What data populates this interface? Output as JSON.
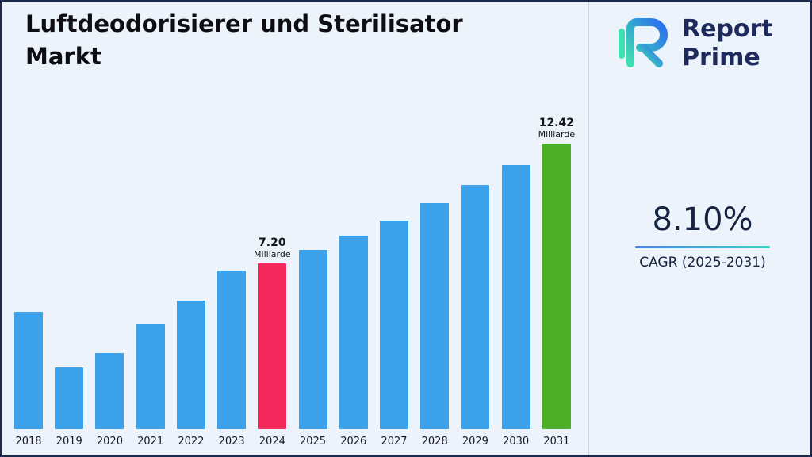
{
  "title_lines": [
    "Luftdeodorisierer und Sterilisator",
    "Markt"
  ],
  "brand": {
    "line1": "Report",
    "line2": "Prime"
  },
  "cagr": {
    "value": "8.10%",
    "label": "CAGR (2025-2031)"
  },
  "chart_data": {
    "type": "bar",
    "title": "Luftdeodorisierer und Sterilisator Markt",
    "xlabel": "",
    "ylabel": "",
    "unit": "Milliarde",
    "ylim": [
      0,
      13
    ],
    "grid": false,
    "legend": false,
    "categories": [
      "2018",
      "2019",
      "2020",
      "2021",
      "2022",
      "2023",
      "2024",
      "2025",
      "2026",
      "2027",
      "2028",
      "2029",
      "2030",
      "2031"
    ],
    "values": [
      5.1,
      2.7,
      3.3,
      4.6,
      5.6,
      6.9,
      7.2,
      7.78,
      8.41,
      9.09,
      9.83,
      10.63,
      11.49,
      12.42
    ],
    "annotations": {
      "2024": {
        "value": "7.20",
        "unit": "Milliarde"
      },
      "2031": {
        "value": "12.42",
        "unit": "Milliarde"
      }
    },
    "bar_colors": {
      "default": "#3BA1E8",
      "2024": "#F4295E",
      "2031": "#4EAF26"
    }
  }
}
